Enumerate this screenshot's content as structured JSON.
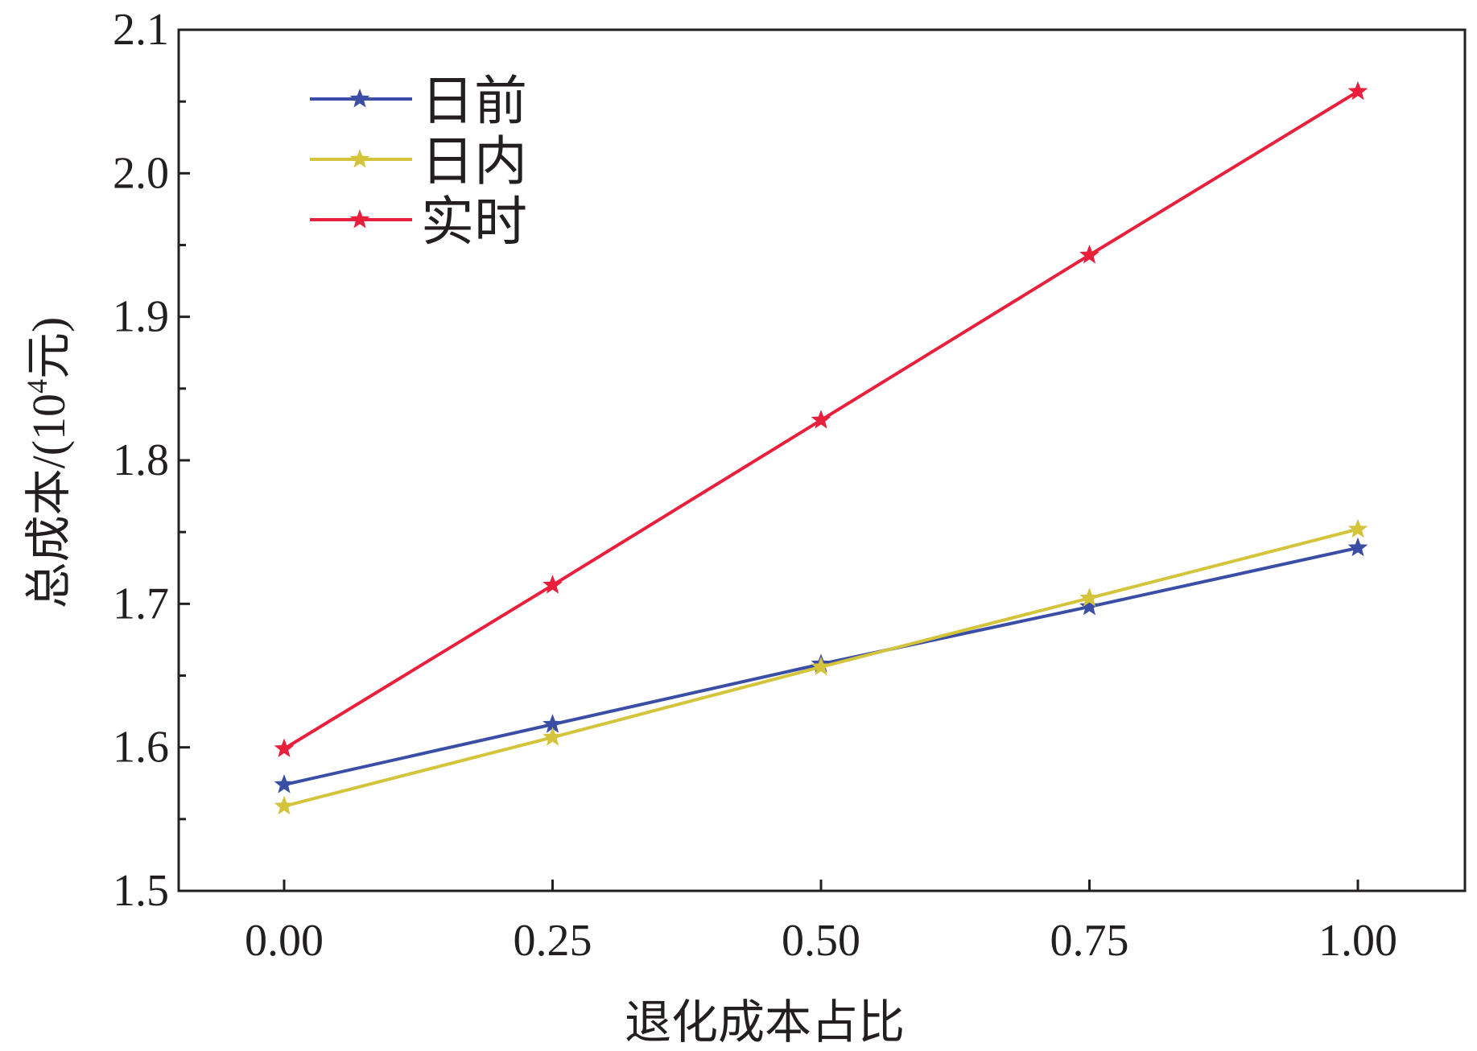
{
  "chart_data": {
    "type": "line",
    "title": "",
    "xlabel": "退化成本占比",
    "ylabel": "总成本/(10⁴元)",
    "ylabel_parts": {
      "prefix": "总成本/(10",
      "sup": "4",
      "suffix": "元)"
    },
    "x": [
      0.0,
      0.25,
      0.5,
      0.75,
      1.0
    ],
    "xticks": [
      "0.00",
      "0.25",
      "0.50",
      "0.75",
      "1.00"
    ],
    "yticks": [
      "1.5",
      "1.6",
      "1.7",
      "1.8",
      "1.9",
      "2.0",
      "2.1"
    ],
    "xlim": [
      -0.1,
      1.1
    ],
    "ylim": [
      1.5,
      2.1
    ],
    "grid": false,
    "legend_position": "top-left",
    "series": [
      {
        "name": "日前",
        "color": "#3a4ea5",
        "marker": "star",
        "values": [
          1.574,
          1.616,
          1.658,
          1.698,
          1.739
        ]
      },
      {
        "name": "日内",
        "color": "#d4c43c",
        "marker": "star",
        "values": [
          1.559,
          1.607,
          1.656,
          1.704,
          1.752
        ]
      },
      {
        "name": "实时",
        "color": "#e8203c",
        "marker": "star",
        "values": [
          1.599,
          1.713,
          1.828,
          1.943,
          2.057
        ]
      }
    ]
  }
}
